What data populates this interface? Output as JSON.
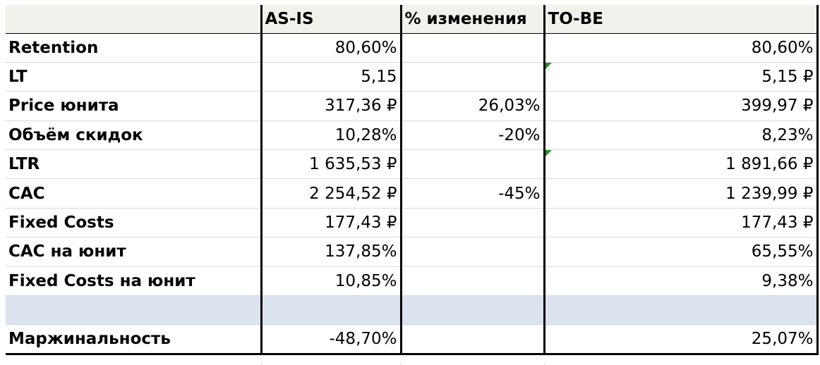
{
  "header": [
    "",
    "AS-IS",
    "% изменения",
    "TO-BE"
  ],
  "rows": [
    {
      "label": "Retention",
      "as_is": "80,60%",
      "change": "",
      "to_be": "80,60%",
      "flag": false
    },
    {
      "label": "LT",
      "as_is": "5,15",
      "change": "",
      "to_be": "5,15 ₽",
      "flag": true
    },
    {
      "label": "Price юнита",
      "as_is": "317,36 ₽",
      "change": "26,03%",
      "to_be": "399,97 ₽",
      "flag": false
    },
    {
      "label": "Объём скидок",
      "as_is": "10,28%",
      "change": "-20%",
      "to_be": "8,23%",
      "flag": false
    },
    {
      "label": "LTR",
      "as_is": "1 635,53 ₽",
      "change": "",
      "to_be": "1 891,66 ₽",
      "flag": true
    },
    {
      "label": "CAC",
      "as_is": "2 254,52 ₽",
      "change": "-45%",
      "to_be": "1 239,99 ₽",
      "flag": false
    },
    {
      "label": "Fixed Costs",
      "as_is": "177,43 ₽",
      "change": "",
      "to_be": "177,43 ₽",
      "flag": false
    },
    {
      "label": "CAC на юнит",
      "as_is": "137,85%",
      "change": "",
      "to_be": "65,55%",
      "flag": false
    },
    {
      "label": "Fixed Costs на юнит",
      "as_is": "10,85%",
      "change": "",
      "to_be": "9,38%",
      "flag": false
    },
    {
      "label": "",
      "as_is": "",
      "change": "",
      "to_be": "",
      "flag": false,
      "blank": true
    },
    {
      "label": "Маржинальность",
      "as_is": "-48,70%",
      "change": "",
      "to_be": "25,07%",
      "flag": false
    }
  ],
  "colors": {
    "header_bg": "#f2f2ec",
    "blank_row_bg": "#dbe3ee",
    "comment_flag": "#2e8b2e",
    "gridline": "#d9d9d9"
  }
}
